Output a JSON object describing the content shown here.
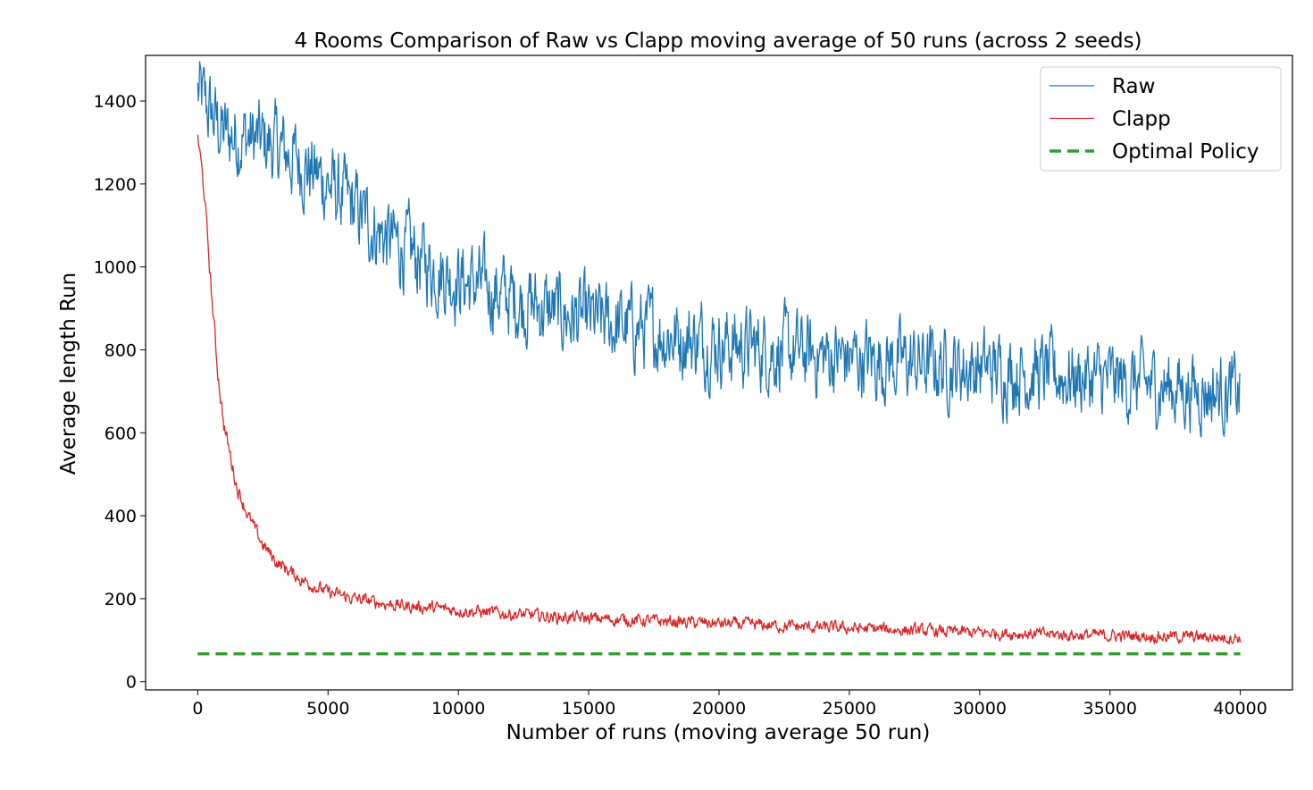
{
  "chart_data": {
    "type": "line",
    "title": "4 Rooms Comparison of Raw vs Clapp moving average of 50 runs (across 2 seeds)",
    "xlabel": "Number of runs (moving average 50 run)",
    "ylabel": "Average length Run",
    "xlim": [
      -2000,
      42000
    ],
    "ylim": [
      -20,
      1510
    ],
    "x_ticks": [
      0,
      5000,
      10000,
      15000,
      20000,
      25000,
      30000,
      35000,
      40000
    ],
    "y_ticks": [
      0,
      200,
      400,
      600,
      800,
      1000,
      1200,
      1400
    ],
    "grid": false,
    "legend_position": "top-right",
    "series": [
      {
        "name": "Raw",
        "color": "#1f77b4",
        "style": "solid",
        "x": [
          0,
          1000,
          2000,
          3000,
          4000,
          5000,
          6000,
          7000,
          8000,
          9000,
          10000,
          11000,
          12000,
          13000,
          14000,
          15000,
          16000,
          17000,
          18000,
          19000,
          20000,
          21000,
          22000,
          23000,
          24000,
          25000,
          26000,
          27000,
          28000,
          29000,
          30000,
          31000,
          32000,
          33000,
          34000,
          35000,
          36000,
          37000,
          38000,
          39000,
          40000
        ],
        "values": [
          1420,
          1320,
          1310,
          1290,
          1250,
          1200,
          1140,
          1080,
          1040,
          1000,
          970,
          950,
          925,
          905,
          885,
          870,
          860,
          850,
          838,
          825,
          815,
          808,
          800,
          792,
          785,
          780,
          775,
          770,
          765,
          760,
          755,
          750,
          745,
          740,
          732,
          725,
          718,
          712,
          705,
          700,
          695
        ],
        "noise": 55
      },
      {
        "name": "Clapp",
        "color": "#d62728",
        "style": "solid",
        "x": [
          0,
          250,
          500,
          750,
          1000,
          1500,
          2000,
          2500,
          3000,
          4000,
          5000,
          6000,
          7000,
          8000,
          9000,
          10000,
          12000,
          14000,
          16000,
          18000,
          20000,
          22000,
          24000,
          26000,
          28000,
          30000,
          32000,
          34000,
          36000,
          38000,
          40000
        ],
        "values": [
          1320,
          1180,
          960,
          760,
          620,
          470,
          390,
          330,
          290,
          245,
          215,
          200,
          190,
          182,
          178,
          172,
          163,
          155,
          150,
          145,
          140,
          135,
          130,
          127,
          122,
          118,
          115,
          112,
          110,
          108,
          106
        ],
        "noise": 12
      },
      {
        "name": "Optimal Policy",
        "color": "#2ca02c",
        "style": "dashed",
        "x": [
          0,
          40000
        ],
        "values": [
          67,
          67
        ]
      }
    ]
  }
}
